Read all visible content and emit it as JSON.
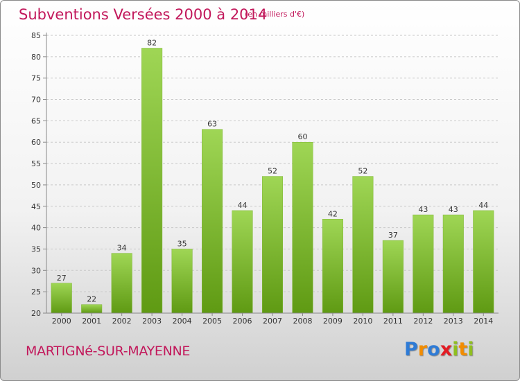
{
  "header": {
    "title": "Subventions Versées 2000 à 2014",
    "unit": "(en milliers d'€)"
  },
  "footer": {
    "commune": "MARTIGNé-SUR-MAYENNE",
    "logo": [
      "P",
      "r",
      "o",
      "x",
      "i",
      "t",
      "i"
    ],
    "logo_colors": [
      "#2e7bd6",
      "#f28c00",
      "#2e7bd6",
      "#e31b23",
      "#8fbf1f",
      "#f28c00",
      "#8fbf1f"
    ]
  },
  "colors": {
    "bar_top": "#9fd655",
    "bar_bottom": "#5f9a13",
    "grid": "#c8c8c8",
    "axis": "#888888"
  },
  "chart_data": {
    "type": "bar",
    "categories": [
      "2000",
      "2001",
      "2002",
      "2003",
      "2004",
      "2005",
      "2006",
      "2007",
      "2008",
      "2009",
      "2010",
      "2011",
      "2012",
      "2013",
      "2014"
    ],
    "values": [
      27,
      22,
      34,
      82,
      35,
      63,
      44,
      52,
      60,
      42,
      52,
      37,
      43,
      43,
      44
    ],
    "title": "Subventions Versées 2000 à 2014",
    "ylim": [
      20,
      85
    ],
    "yticks": [
      20,
      25,
      30,
      35,
      40,
      45,
      50,
      55,
      60,
      65,
      70,
      75,
      80,
      85
    ],
    "grid": true,
    "data_labels": true
  }
}
